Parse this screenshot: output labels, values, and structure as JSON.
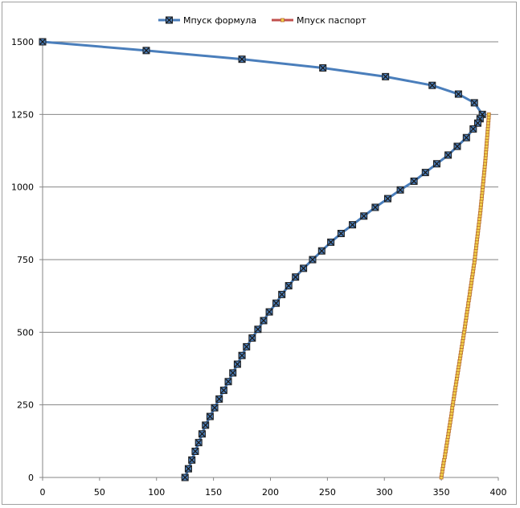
{
  "chart_data": {
    "type": "line",
    "title": "",
    "xlabel": "",
    "ylabel": "",
    "xlim": [
      0,
      400
    ],
    "ylim": [
      0,
      1500
    ],
    "x_ticks": [
      0,
      50,
      100,
      150,
      200,
      250,
      300,
      350,
      400
    ],
    "y_ticks": [
      0,
      250,
      500,
      750,
      1000,
      1250,
      1500
    ],
    "grid": "horizontal",
    "legend_position": "top",
    "series": [
      {
        "name": "Мпуск формула",
        "color": "#4a7ebb",
        "marker": "x-square",
        "points": [
          [
            0,
            1500
          ],
          [
            91,
            1470
          ],
          [
            175,
            1440
          ],
          [
            246,
            1410
          ],
          [
            301,
            1380
          ],
          [
            342,
            1350
          ],
          [
            365,
            1320
          ],
          [
            379,
            1290
          ],
          [
            386,
            1250
          ],
          [
            384,
            1235
          ],
          [
            382,
            1220
          ],
          [
            378,
            1200
          ],
          [
            372,
            1170
          ],
          [
            364,
            1140
          ],
          [
            356,
            1110
          ],
          [
            346,
            1080
          ],
          [
            336,
            1050
          ],
          [
            326,
            1020
          ],
          [
            314,
            990
          ],
          [
            303,
            960
          ],
          [
            292,
            930
          ],
          [
            282,
            900
          ],
          [
            272,
            870
          ],
          [
            262,
            840
          ],
          [
            253,
            810
          ],
          [
            245,
            780
          ],
          [
            237,
            750
          ],
          [
            229,
            720
          ],
          [
            222,
            690
          ],
          [
            216,
            660
          ],
          [
            210,
            630
          ],
          [
            205,
            600
          ],
          [
            199,
            570
          ],
          [
            194,
            540
          ],
          [
            189,
            510
          ],
          [
            184,
            480
          ],
          [
            179,
            450
          ],
          [
            175,
            420
          ],
          [
            171,
            390
          ],
          [
            167,
            360
          ],
          [
            163,
            330
          ],
          [
            159,
            300
          ],
          [
            155,
            270
          ],
          [
            151,
            240
          ],
          [
            147,
            210
          ],
          [
            143,
            180
          ],
          [
            140,
            150
          ],
          [
            137,
            120
          ],
          [
            134,
            90
          ],
          [
            131,
            60
          ],
          [
            128,
            30
          ],
          [
            125,
            0
          ]
        ]
      },
      {
        "name": "Мпуск паспорт",
        "color": "#c0504d",
        "marker": "small-square",
        "points": [
          [
            350,
            0
          ],
          [
            350.4,
            10
          ],
          [
            350.8,
            20
          ],
          [
            351.2,
            30
          ],
          [
            351.6,
            40
          ],
          [
            352,
            50
          ],
          [
            352.5,
            60
          ],
          [
            353,
            70
          ],
          [
            353.4,
            80
          ],
          [
            353.8,
            90
          ],
          [
            354.2,
            100
          ],
          [
            354.6,
            110
          ],
          [
            355,
            120
          ],
          [
            355.4,
            130
          ],
          [
            355.8,
            140
          ],
          [
            356.2,
            150
          ],
          [
            356.6,
            160
          ],
          [
            357,
            170
          ],
          [
            357.4,
            180
          ],
          [
            357.8,
            190
          ],
          [
            358.2,
            200
          ],
          [
            358.6,
            210
          ],
          [
            359,
            220
          ],
          [
            359.3,
            230
          ],
          [
            359.6,
            240
          ],
          [
            360,
            250
          ],
          [
            360.4,
            260
          ],
          [
            360.8,
            270
          ],
          [
            361.2,
            280
          ],
          [
            361.6,
            290
          ],
          [
            362,
            300
          ],
          [
            362.4,
            310
          ],
          [
            362.8,
            320
          ],
          [
            363.2,
            330
          ],
          [
            363.6,
            340
          ],
          [
            364,
            350
          ],
          [
            364.4,
            360
          ],
          [
            364.8,
            370
          ],
          [
            365.2,
            380
          ],
          [
            365.6,
            390
          ],
          [
            366,
            400
          ],
          [
            366.4,
            410
          ],
          [
            366.8,
            420
          ],
          [
            367.2,
            430
          ],
          [
            367.6,
            440
          ],
          [
            368,
            450
          ],
          [
            368.4,
            460
          ],
          [
            368.8,
            470
          ],
          [
            369.2,
            480
          ],
          [
            369.6,
            490
          ],
          [
            370,
            500
          ],
          [
            370.4,
            510
          ],
          [
            370.8,
            520
          ],
          [
            371.1,
            530
          ],
          [
            371.5,
            540
          ],
          [
            371.9,
            550
          ],
          [
            372.2,
            560
          ],
          [
            372.6,
            570
          ],
          [
            373,
            580
          ],
          [
            373.4,
            590
          ],
          [
            373.7,
            600
          ],
          [
            374.1,
            610
          ],
          [
            374.5,
            620
          ],
          [
            374.9,
            630
          ],
          [
            375.2,
            640
          ],
          [
            375.6,
            650
          ],
          [
            376,
            660
          ],
          [
            376.4,
            670
          ],
          [
            376.7,
            680
          ],
          [
            377.1,
            690
          ],
          [
            377.5,
            700
          ],
          [
            377.9,
            710
          ],
          [
            378.2,
            720
          ],
          [
            378.6,
            730
          ],
          [
            379,
            740
          ],
          [
            379.3,
            750
          ],
          [
            379.6,
            760
          ],
          [
            379.9,
            770
          ],
          [
            380.2,
            780
          ],
          [
            380.5,
            790
          ],
          [
            380.8,
            800
          ],
          [
            381.1,
            810
          ],
          [
            381.4,
            820
          ],
          [
            381.7,
            830
          ],
          [
            382,
            840
          ],
          [
            382.3,
            850
          ],
          [
            382.6,
            860
          ],
          [
            382.9,
            870
          ],
          [
            383.2,
            880
          ],
          [
            383.5,
            890
          ],
          [
            383.8,
            900
          ],
          [
            384.1,
            910
          ],
          [
            384.4,
            920
          ],
          [
            384.6,
            930
          ],
          [
            384.9,
            940
          ],
          [
            385.1,
            950
          ],
          [
            385.4,
            960
          ],
          [
            385.6,
            970
          ],
          [
            385.9,
            980
          ],
          [
            386.1,
            990
          ],
          [
            386.4,
            1000
          ],
          [
            386.6,
            1010
          ],
          [
            386.9,
            1020
          ],
          [
            387.1,
            1030
          ],
          [
            387.4,
            1040
          ],
          [
            387.6,
            1050
          ],
          [
            387.9,
            1060
          ],
          [
            388.1,
            1070
          ],
          [
            388.4,
            1080
          ],
          [
            388.6,
            1090
          ],
          [
            388.8,
            1100
          ],
          [
            389,
            1110
          ],
          [
            389.2,
            1120
          ],
          [
            389.4,
            1130
          ],
          [
            389.6,
            1140
          ],
          [
            389.8,
            1150
          ],
          [
            390,
            1160
          ],
          [
            390.2,
            1170
          ],
          [
            390.4,
            1180
          ],
          [
            390.6,
            1190
          ],
          [
            390.8,
            1200
          ],
          [
            391,
            1210
          ],
          [
            391.2,
            1220
          ],
          [
            391.4,
            1230
          ],
          [
            391.6,
            1240
          ],
          [
            391.7,
            1250
          ]
        ]
      }
    ]
  }
}
